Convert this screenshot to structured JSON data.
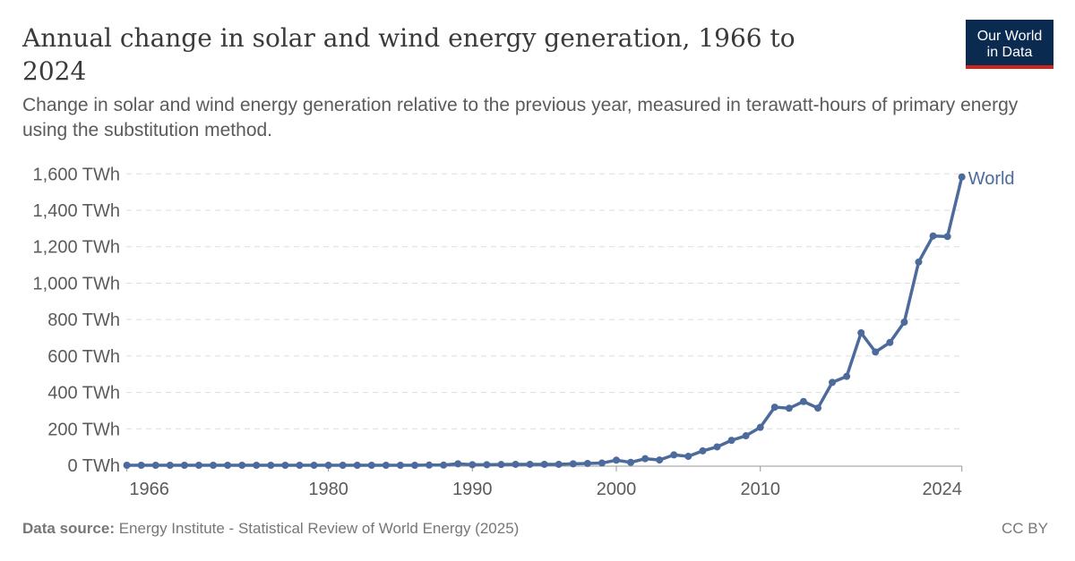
{
  "header": {
    "title": "Annual change in solar and wind energy generation, 1966 to 2024",
    "subtitle": "Change in solar and wind energy generation relative to the previous year, measured in terawatt-hours of primary energy using the substitution method.",
    "logo_line1": "Our World",
    "logo_line2": "in Data"
  },
  "footer": {
    "source_label": "Data source:",
    "source": "Energy Institute - Statistical Review of World Energy (2025)",
    "license": "CC BY"
  },
  "colors": {
    "series": "#4c6a9c",
    "grid": "#dddddd",
    "text": "#5b5b5b"
  },
  "chart_data": {
    "type": "line",
    "grid": true,
    "ylim": [
      0,
      1600
    ],
    "xlim": [
      1966,
      2024
    ],
    "yticks": [
      {
        "v": 0,
        "label": "0 TWh"
      },
      {
        "v": 200,
        "label": "200 TWh"
      },
      {
        "v": 400,
        "label": "400 TWh"
      },
      {
        "v": 600,
        "label": "600 TWh"
      },
      {
        "v": 800,
        "label": "800 TWh"
      },
      {
        "v": 1000,
        "label": "1,000 TWh"
      },
      {
        "v": 1200,
        "label": "1,200 TWh"
      },
      {
        "v": 1400,
        "label": "1,400 TWh"
      },
      {
        "v": 1600,
        "label": "1,600 TWh"
      }
    ],
    "xticks": [
      {
        "v": 1966,
        "label": "1966"
      },
      {
        "v": 1980,
        "label": "1980"
      },
      {
        "v": 1990,
        "label": "1990"
      },
      {
        "v": 2000,
        "label": "2000"
      },
      {
        "v": 2010,
        "label": "2010"
      },
      {
        "v": 2024,
        "label": "2024"
      }
    ],
    "series": [
      {
        "name": "World",
        "x": [
          1966,
          1967,
          1968,
          1969,
          1970,
          1971,
          1972,
          1973,
          1974,
          1975,
          1976,
          1977,
          1978,
          1979,
          1980,
          1981,
          1982,
          1983,
          1984,
          1985,
          1986,
          1987,
          1988,
          1989,
          1990,
          1991,
          1992,
          1993,
          1994,
          1995,
          1996,
          1997,
          1998,
          1999,
          2000,
          2001,
          2002,
          2003,
          2004,
          2005,
          2006,
          2007,
          2008,
          2009,
          2010,
          2011,
          2012,
          2013,
          2014,
          2015,
          2016,
          2017,
          2018,
          2019,
          2020,
          2021,
          2022,
          2023,
          2024
        ],
        "y": [
          0,
          0,
          0,
          0,
          0,
          0,
          0,
          0,
          0,
          0,
          0,
          0,
          0,
          0,
          0,
          0,
          0,
          0,
          0,
          0,
          0,
          1,
          1,
          8,
          3,
          3,
          4,
          5,
          5,
          5,
          5,
          8,
          10,
          12,
          28,
          16,
          36,
          29,
          57,
          49,
          79,
          101,
          137,
          162,
          208,
          319,
          313,
          350,
          314,
          455,
          488,
          727,
          622,
          674,
          786,
          1116,
          1259,
          1256,
          1583
        ]
      }
    ]
  }
}
